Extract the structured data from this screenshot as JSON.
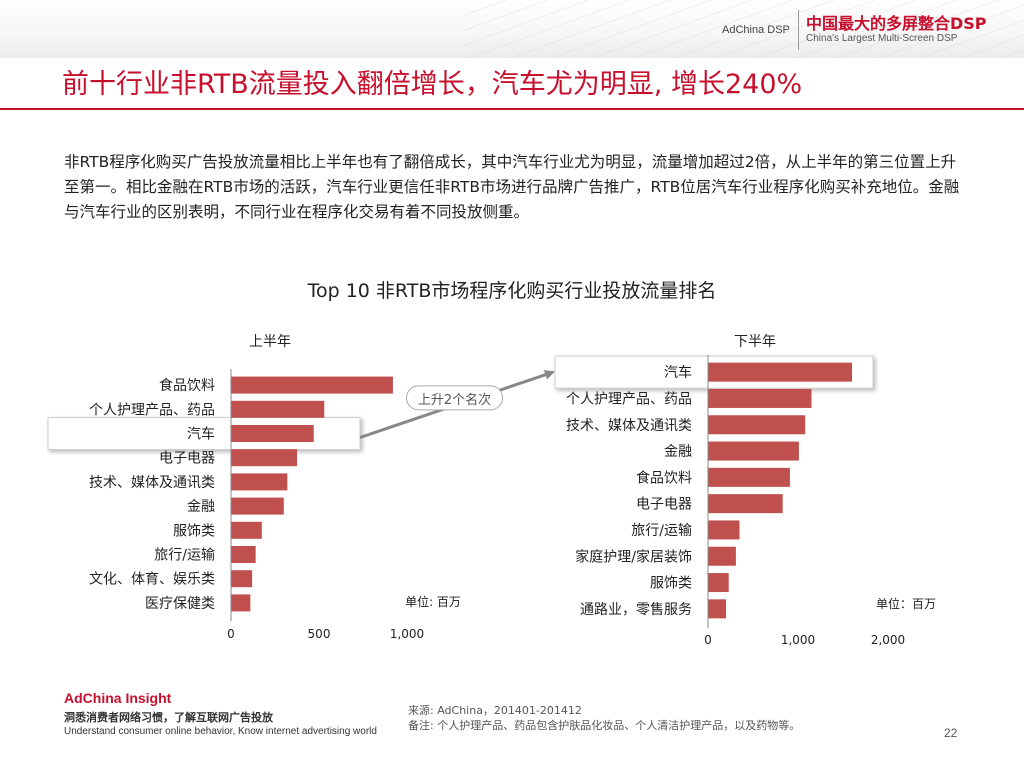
{
  "header": {
    "brand": "AdChina DSP",
    "brand_cn": "中国最大的多屏整合DSP",
    "brand_en": "China's Largest Multi-Screen DSP"
  },
  "title": "前十行业非RTB流量投入翻倍增长，汽车尤为明显, 增长240%",
  "body_text": "非RTB程序化购买广告投放流量相比上半年也有了翻倍成长，其中汽车行业尤为明显，流量增加超过2倍，从上半年的第三位置上升至第一。相比金融在RTB市场的活跃，汽车行业更信任非RTB市场进行品牌广告推广，RTB位居汽车行业程序化购买补充地位。金融与汽车行业的区别表明，不同行业在程序化交易有着不同投放侧重。",
  "chart_title": "Top 10 非RTB市场程序化购买行业投放流量排名",
  "annotation": "上升2个名次",
  "colors": {
    "bar": "#c0504d",
    "accent": "#c8102e"
  },
  "chart_data": [
    {
      "type": "bar",
      "orientation": "horizontal",
      "title": "上半年",
      "unit_label": "单位: 百万",
      "categories": [
        "食品饮料",
        "个人护理产品、药品",
        "汽车",
        "电子电器",
        "技术、媒体及通讯类",
        "金融",
        "服饰类",
        "旅行/运输",
        "文化、体育、娱乐类",
        "医疗保健类"
      ],
      "values": [
        920,
        530,
        470,
        375,
        320,
        300,
        175,
        140,
        120,
        110
      ],
      "highlight": "汽车",
      "xlim": [
        0,
        1000
      ],
      "ticks": [
        "0",
        "500",
        "1,000"
      ]
    },
    {
      "type": "bar",
      "orientation": "horizontal",
      "title": "下半年",
      "unit_label": "单位：百万",
      "categories": [
        "汽车",
        "个人护理产品、药品",
        "技术、媒体及通讯类",
        "金融",
        "食品饮料",
        "电子电器",
        "旅行/运输",
        "家庭护理/家居装饰",
        "服饰类",
        "通路业，零售服务"
      ],
      "values": [
        1600,
        1150,
        1080,
        1010,
        910,
        830,
        350,
        310,
        230,
        200
      ],
      "highlight": "汽车",
      "xlim": [
        0,
        2000
      ],
      "ticks": [
        "0",
        "1,000",
        "2,000"
      ]
    }
  ],
  "footer": {
    "brand": "AdChina Insight",
    "cn": "洞悉消费者网络习惯，了解互联网广告投放",
    "en": "Understand consumer online behavior, Know internet advertising world",
    "source": "来源: AdChina，201401-201412",
    "note": "备注: 个人护理产品、药品包含护肤品化妆品、个人清洁护理产品，以及药物等。",
    "page": "22"
  }
}
